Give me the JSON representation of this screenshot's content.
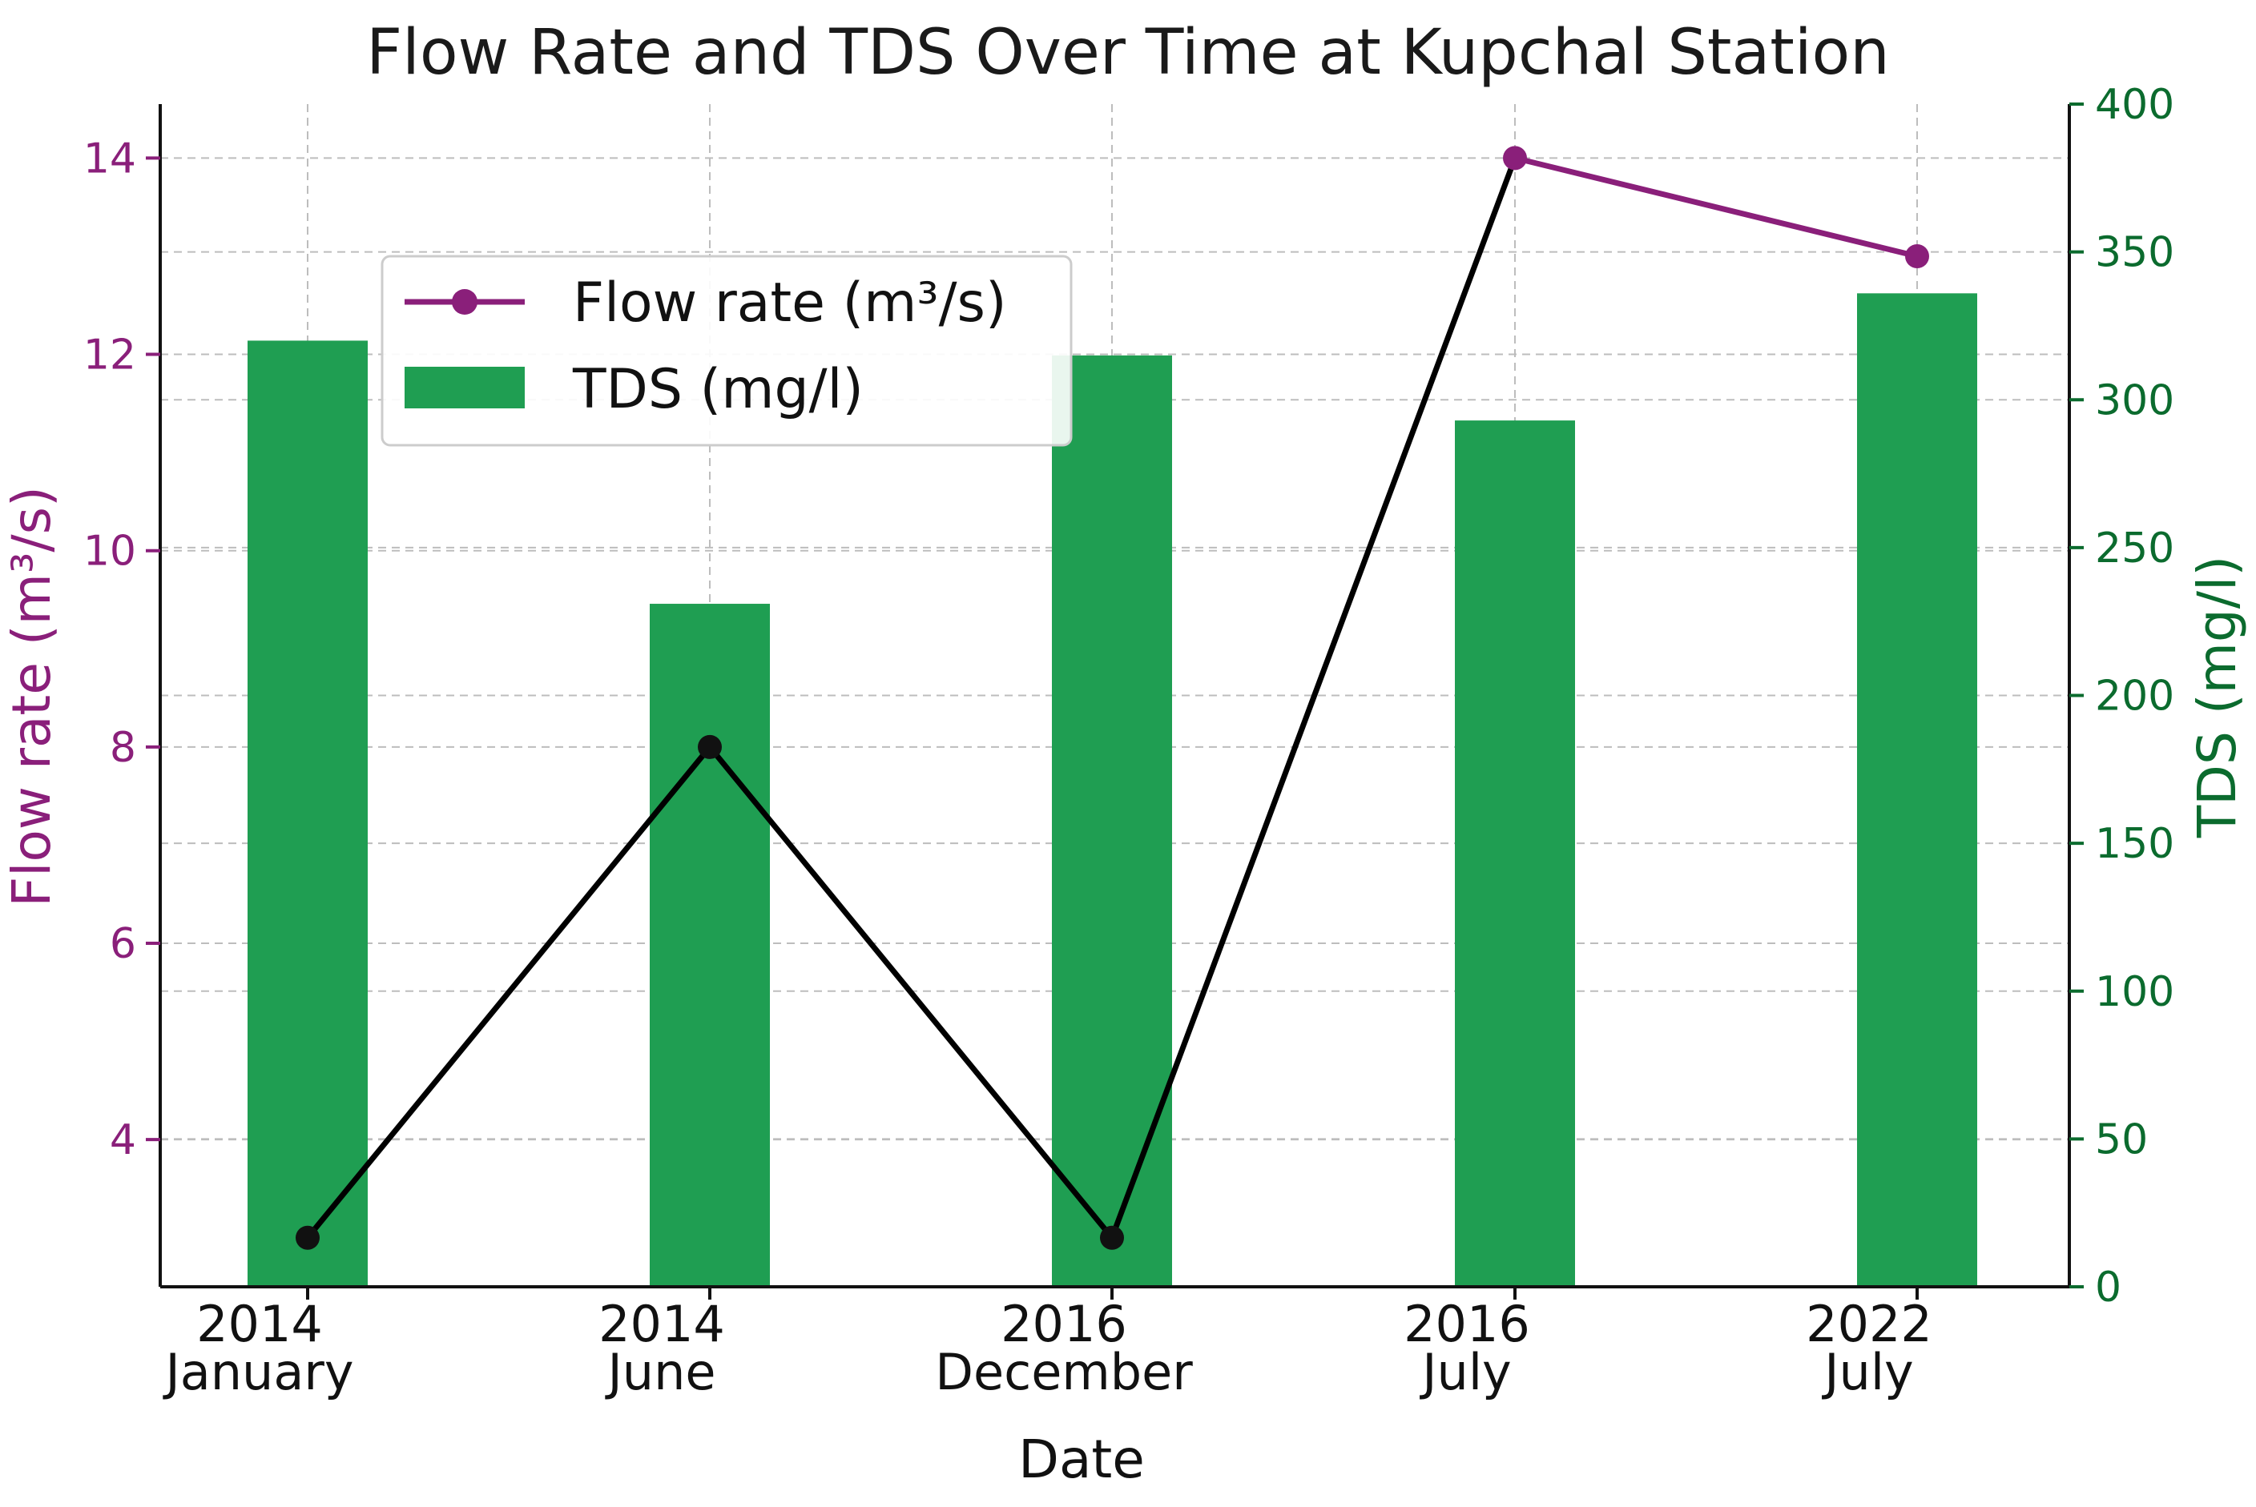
{
  "chart_data": {
    "type": "bar+line",
    "title": "Flow Rate and TDS Over Time at Kupchal Station",
    "xlabel": "Date",
    "ylabel_left": "Flow rate (m³/s)",
    "ylabel_right": "TDS (mg/l)",
    "categories": [
      {
        "year": "2014",
        "month": "January"
      },
      {
        "year": "2014",
        "month": "June"
      },
      {
        "year": "2016",
        "month": "December"
      },
      {
        "year": "2016",
        "month": "July"
      },
      {
        "year": "2022",
        "month": "July"
      }
    ],
    "series": [
      {
        "name": "Flow rate (m³/s)",
        "type": "line",
        "axis": "left",
        "values": [
          3,
          8,
          3,
          14,
          13
        ],
        "segment_colors": [
          "#000000",
          "#000000",
          "#000000",
          "#8a1f7a"
        ]
      },
      {
        "name": "TDS (mg/l)",
        "type": "bar",
        "axis": "right",
        "values": [
          320,
          231,
          315,
          293,
          336
        ]
      }
    ],
    "ylim_left": [
      2.5,
      14.55
    ],
    "yticks_left": [
      4,
      6,
      8,
      10,
      12,
      14
    ],
    "ylim_right": [
      0,
      400
    ],
    "yticks_right": [
      0,
      50,
      100,
      150,
      200,
      250,
      300,
      350,
      400
    ],
    "grid": true,
    "legend_position": "upper-left"
  },
  "colors": {
    "line": "#8a1f7a",
    "line_dark": "#111111",
    "bar": "#1f9e52",
    "left_axis": "#8a1f7a",
    "right_axis": "#0b6b2e"
  }
}
